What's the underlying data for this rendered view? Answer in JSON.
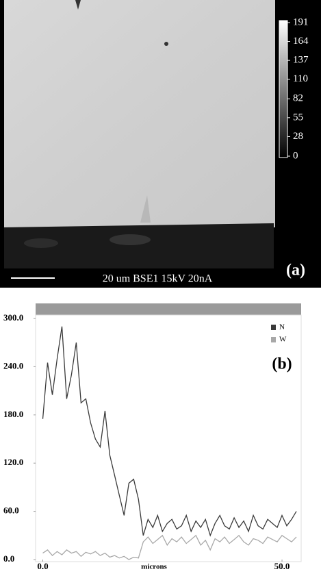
{
  "image": {
    "colorbar_ticks": [
      191,
      164,
      137,
      110,
      82,
      55,
      28,
      0
    ],
    "scale_text": "20 um BSE1  15kV 20nA",
    "label": "(a)"
  },
  "chart_data": {
    "type": "line",
    "annotation": "(b)",
    "x_label": "microns",
    "x": [
      0,
      1,
      2,
      3,
      4,
      5,
      6,
      7,
      8,
      9,
      10,
      11,
      12,
      13,
      14,
      15,
      16,
      17,
      18,
      19,
      20,
      21,
      22,
      23,
      24,
      25,
      26,
      27,
      28,
      29,
      30,
      31,
      32,
      33,
      34,
      35,
      36,
      37,
      38,
      39,
      40,
      41,
      42,
      43,
      44,
      45,
      46,
      47,
      48,
      49,
      50,
      51,
      52,
      53
    ],
    "series": [
      {
        "name": "N",
        "color": "#3a3a3a",
        "values": [
          175,
          245,
          205,
          250,
          290,
          200,
          230,
          270,
          195,
          200,
          170,
          150,
          140,
          185,
          130,
          105,
          80,
          55,
          95,
          100,
          75,
          30,
          50,
          40,
          55,
          35,
          45,
          50,
          38,
          42,
          55,
          35,
          48,
          40,
          50,
          30,
          45,
          55,
          42,
          38,
          52,
          40,
          48,
          35,
          55,
          42,
          38,
          50,
          45,
          40,
          55,
          42,
          50,
          60
        ]
      },
      {
        "name": "W",
        "color": "#a8a8a8",
        "values": [
          8,
          12,
          5,
          10,
          6,
          12,
          8,
          10,
          4,
          9,
          7,
          10,
          5,
          8,
          3,
          5,
          2,
          4,
          0,
          3,
          2,
          22,
          28,
          20,
          25,
          30,
          18,
          26,
          22,
          28,
          20,
          25,
          30,
          18,
          24,
          12,
          26,
          22,
          28,
          20,
          25,
          30,
          22,
          18,
          26,
          24,
          20,
          28,
          25,
          22,
          30,
          26,
          22,
          28
        ]
      }
    ],
    "xlim": [
      -1.5,
      54
    ],
    "ylim": [
      0,
      300
    ],
    "xticks": [
      {
        "value": 0,
        "label": "0.0"
      },
      {
        "value": 50,
        "label": "50.0"
      }
    ],
    "yticks": [
      {
        "value": 0,
        "label": "0.0"
      },
      {
        "value": 60,
        "label": "60.0"
      },
      {
        "value": 120,
        "label": "120.0"
      },
      {
        "value": 180,
        "label": "180.0"
      },
      {
        "value": 240,
        "label": "240.0"
      },
      {
        "value": 300,
        "label": "300.0"
      }
    ],
    "legend": "upper right"
  }
}
